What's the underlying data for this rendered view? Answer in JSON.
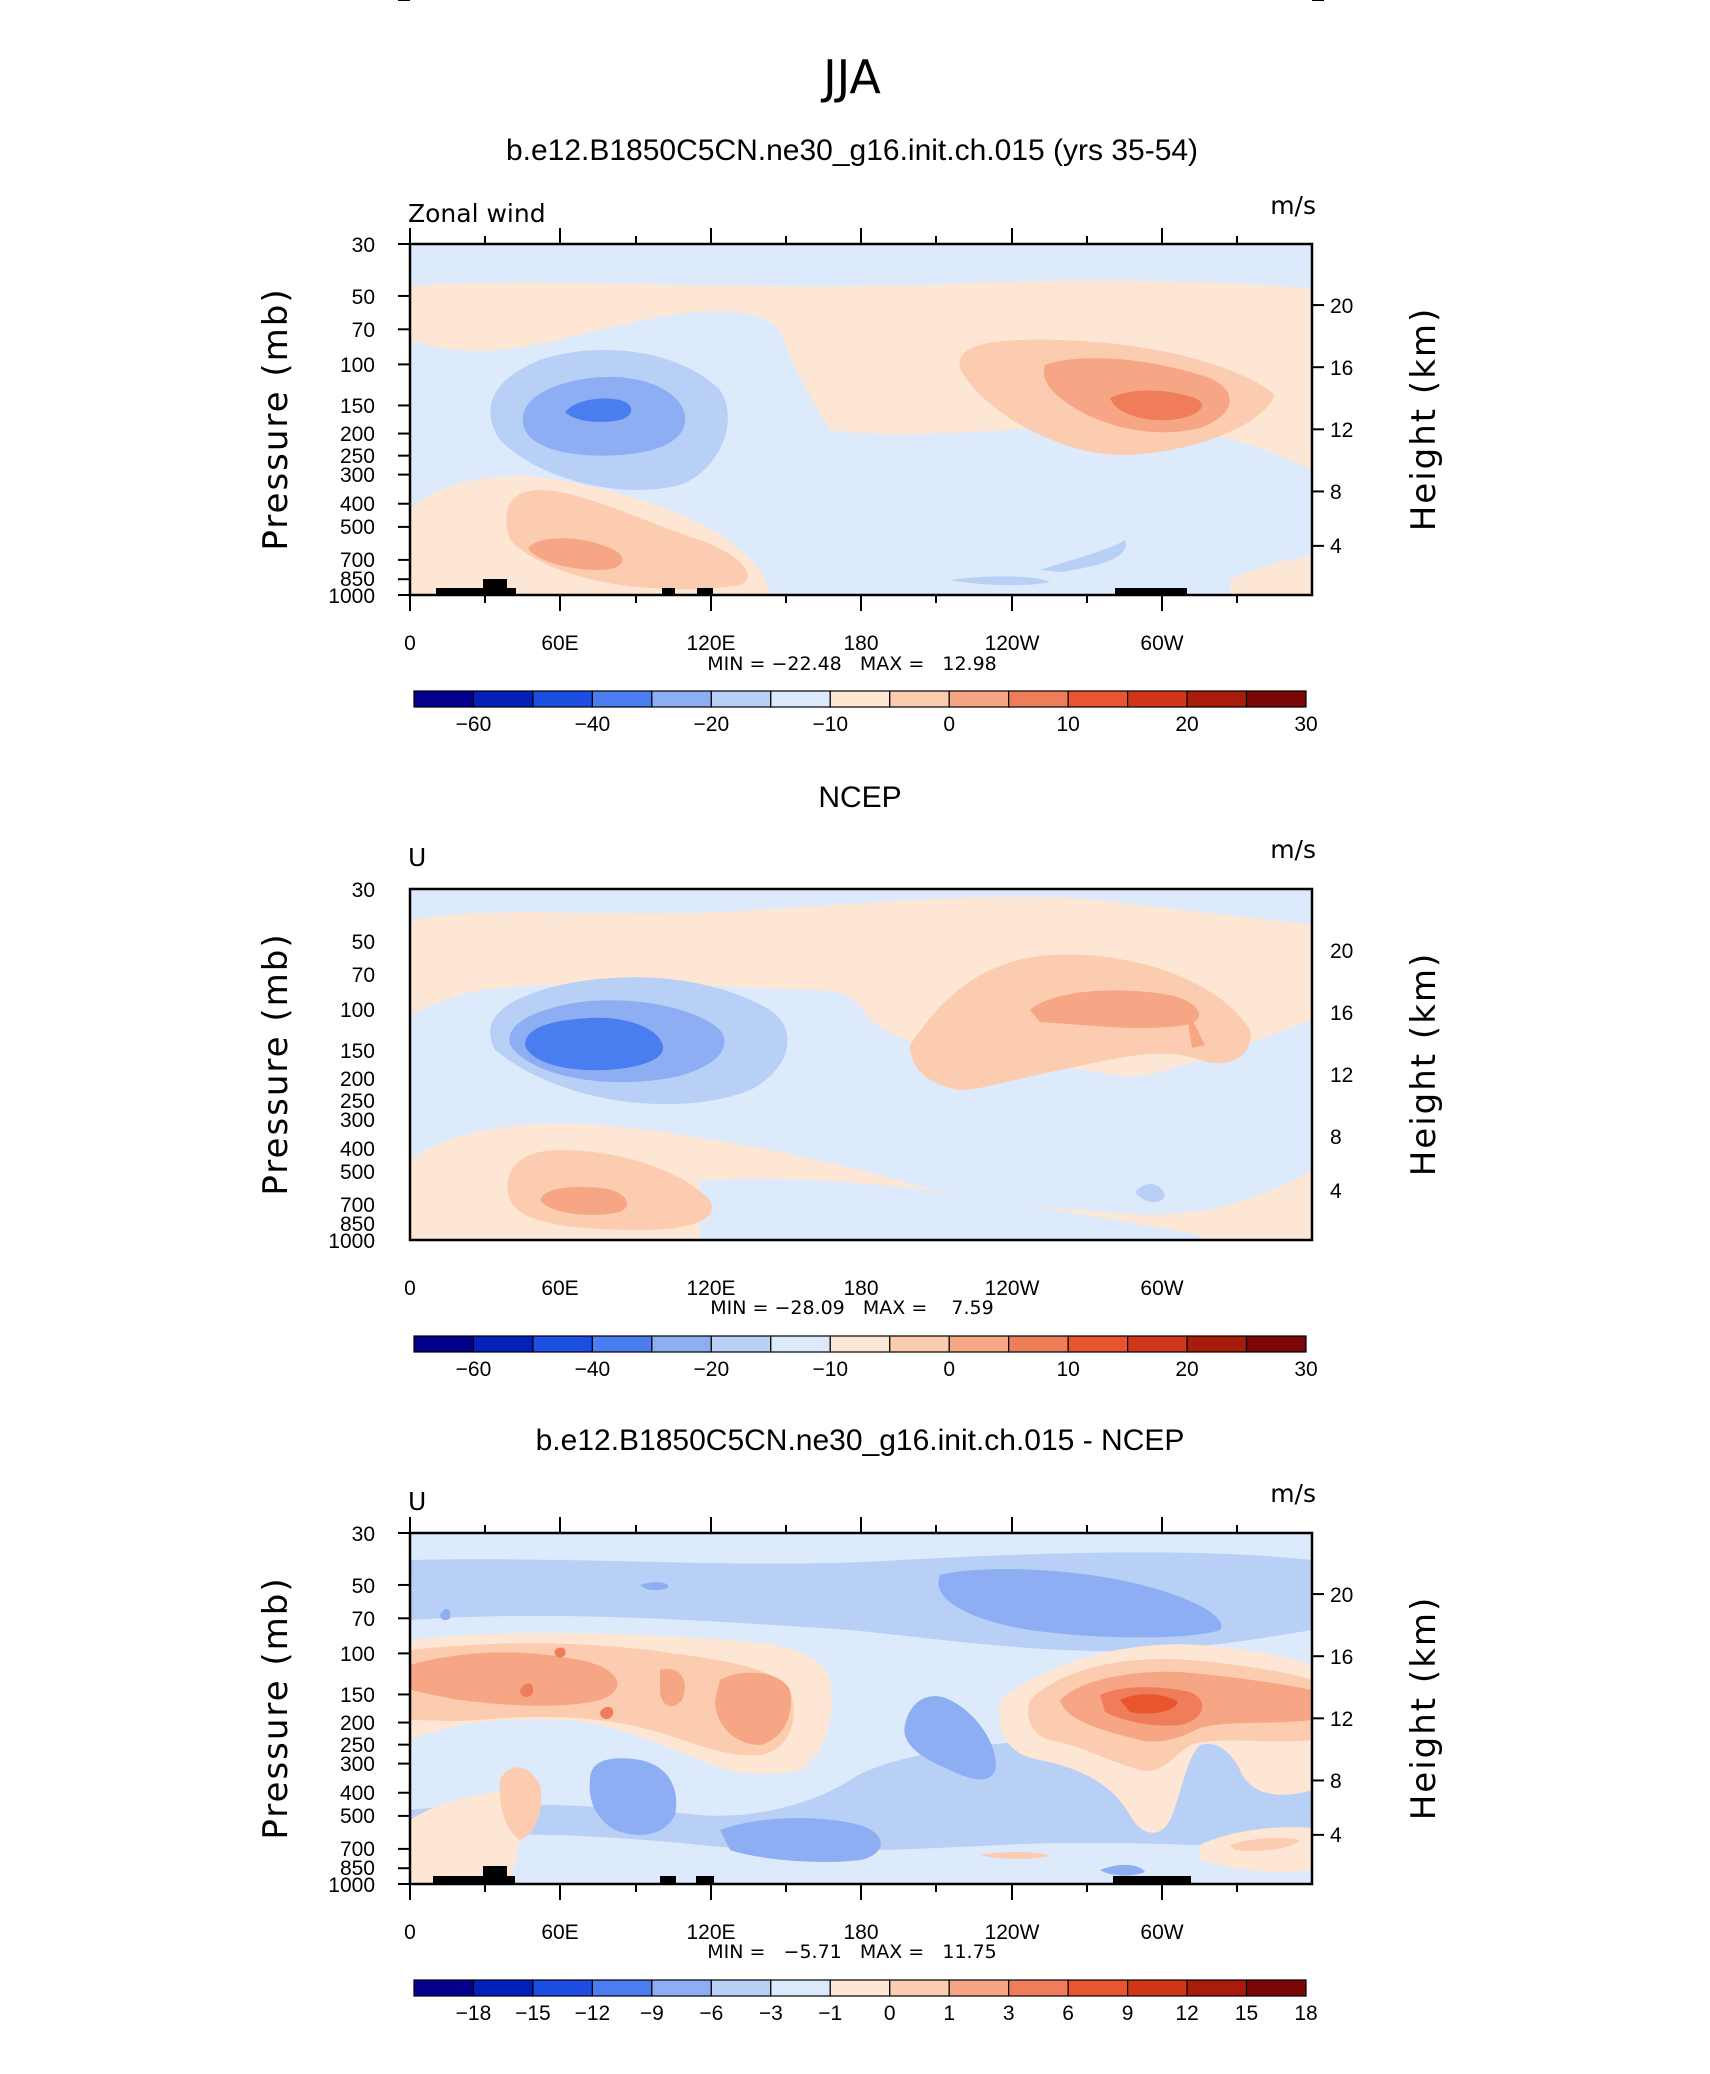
{
  "season": "JJA",
  "chart_data": [
    {
      "type": "heatmap",
      "title": "b.e12.B1850C5CN.ne30_g16.init.ch.015 (yrs 35-54)",
      "variable_label": "Zonal wind",
      "units": "m/s",
      "ylabel": "Pressure (mb)",
      "ylabel_right": "Height (km)",
      "x_ticks": [
        "0",
        "60E",
        "120E",
        "180",
        "120W",
        "60W"
      ],
      "y_ticks": [
        "30",
        "50",
        "70",
        "100",
        "150",
        "200",
        "250",
        "300",
        "400",
        "500",
        "700",
        "850",
        "1000"
      ],
      "y_ticks_right": [
        "20",
        "16",
        "12",
        "8",
        "4"
      ],
      "min_max_text": "MIN = −22.48   MAX =   12.98",
      "min": -22.48,
      "max": 12.98,
      "colorbar": {
        "labels": [
          "−60",
          "−40",
          "−20",
          "−10",
          "0",
          "10",
          "20",
          "30"
        ],
        "colors": [
          "#04008c",
          "#0320bb",
          "#1d4ee2",
          "#4a7ef0",
          "#8eaef4",
          "#b8cff6",
          "#dceafb",
          "#fde7d4",
          "#fbccb0",
          "#f6a684",
          "#f07d5a",
          "#e9552e",
          "#d1361a",
          "#a81c0c",
          "#7a0606"
        ]
      },
      "features": [
        {
          "name": "easterly jet",
          "center": [
            "75E",
            150
          ],
          "peak": -22.48
        },
        {
          "name": "westerly max",
          "center": [
            "60W",
            150
          ],
          "peak": 12.98
        },
        {
          "name": "low-level westerlies",
          "center": [
            "70E",
            700
          ],
          "peak": 8
        }
      ]
    },
    {
      "type": "heatmap",
      "title": "NCEP",
      "variable_label": "U",
      "units": "m/s",
      "ylabel": "Pressure (mb)",
      "ylabel_right": "Height (km)",
      "x_ticks": [
        "0",
        "60E",
        "120E",
        "180",
        "120W",
        "60W"
      ],
      "y_ticks": [
        "30",
        "50",
        "70",
        "100",
        "150",
        "200",
        "250",
        "300",
        "400",
        "500",
        "700",
        "850",
        "1000"
      ],
      "y_ticks_right": [
        "20",
        "16",
        "12",
        "8",
        "4"
      ],
      "min_max_text": "MIN = −28.09   MAX =    7.59",
      "min": -28.09,
      "max": 7.59,
      "colorbar": {
        "labels": [
          "−60",
          "−40",
          "−20",
          "−10",
          "0",
          "10",
          "20",
          "30"
        ],
        "colors": [
          "#04008c",
          "#0320bb",
          "#1d4ee2",
          "#4a7ef0",
          "#8eaef4",
          "#b8cff6",
          "#dceafb",
          "#fde7d4",
          "#fbccb0",
          "#f6a684",
          "#f07d5a",
          "#e9552e",
          "#d1361a",
          "#a81c0c",
          "#7a0606"
        ]
      },
      "features": [
        {
          "name": "easterly jet",
          "center": [
            "75E",
            150
          ],
          "peak": -28.09
        },
        {
          "name": "westerly max",
          "center": [
            "80W",
            100
          ],
          "peak": 7.59
        },
        {
          "name": "low-level westerlies",
          "center": [
            "70E",
            700
          ],
          "peak": 7
        }
      ]
    },
    {
      "type": "heatmap",
      "title": "b.e12.B1850C5CN.ne30_g16.init.ch.015 - NCEP",
      "variable_label": "U",
      "units": "m/s",
      "ylabel": "Pressure (mb)",
      "ylabel_right": "Height (km)",
      "x_ticks": [
        "0",
        "60E",
        "120E",
        "180",
        "120W",
        "60W"
      ],
      "y_ticks": [
        "30",
        "50",
        "70",
        "100",
        "150",
        "200",
        "250",
        "300",
        "400",
        "500",
        "700",
        "850",
        "1000"
      ],
      "y_ticks_right": [
        "20",
        "16",
        "12",
        "8",
        "4"
      ],
      "min_max_text": "MIN =   −5.71   MAX =   11.75",
      "min": -5.71,
      "max": 11.75,
      "colorbar": {
        "labels": [
          "−18",
          "−15",
          "−12",
          "−9",
          "−6",
          "−3",
          "−1",
          "0",
          "1",
          "3",
          "6",
          "9",
          "12",
          "15",
          "18"
        ],
        "colors": [
          "#04008c",
          "#0320bb",
          "#1d4ee2",
          "#4a7ef0",
          "#8eaef4",
          "#b8cff6",
          "#dceafb",
          "#fde7d4",
          "#fbccb0",
          "#f6a684",
          "#f07d5a",
          "#e9552e",
          "#d1361a",
          "#a81c0c",
          "#7a0606"
        ]
      },
      "features": [
        {
          "name": "positive band",
          "center": [
            "60E",
            150
          ],
          "peak": 6
        },
        {
          "name": "positive max",
          "center": [
            "60W",
            150
          ],
          "peak": 11.75
        },
        {
          "name": "negative area",
          "center": [
            "140E",
            500
          ],
          "peak": -5.71
        }
      ]
    }
  ]
}
